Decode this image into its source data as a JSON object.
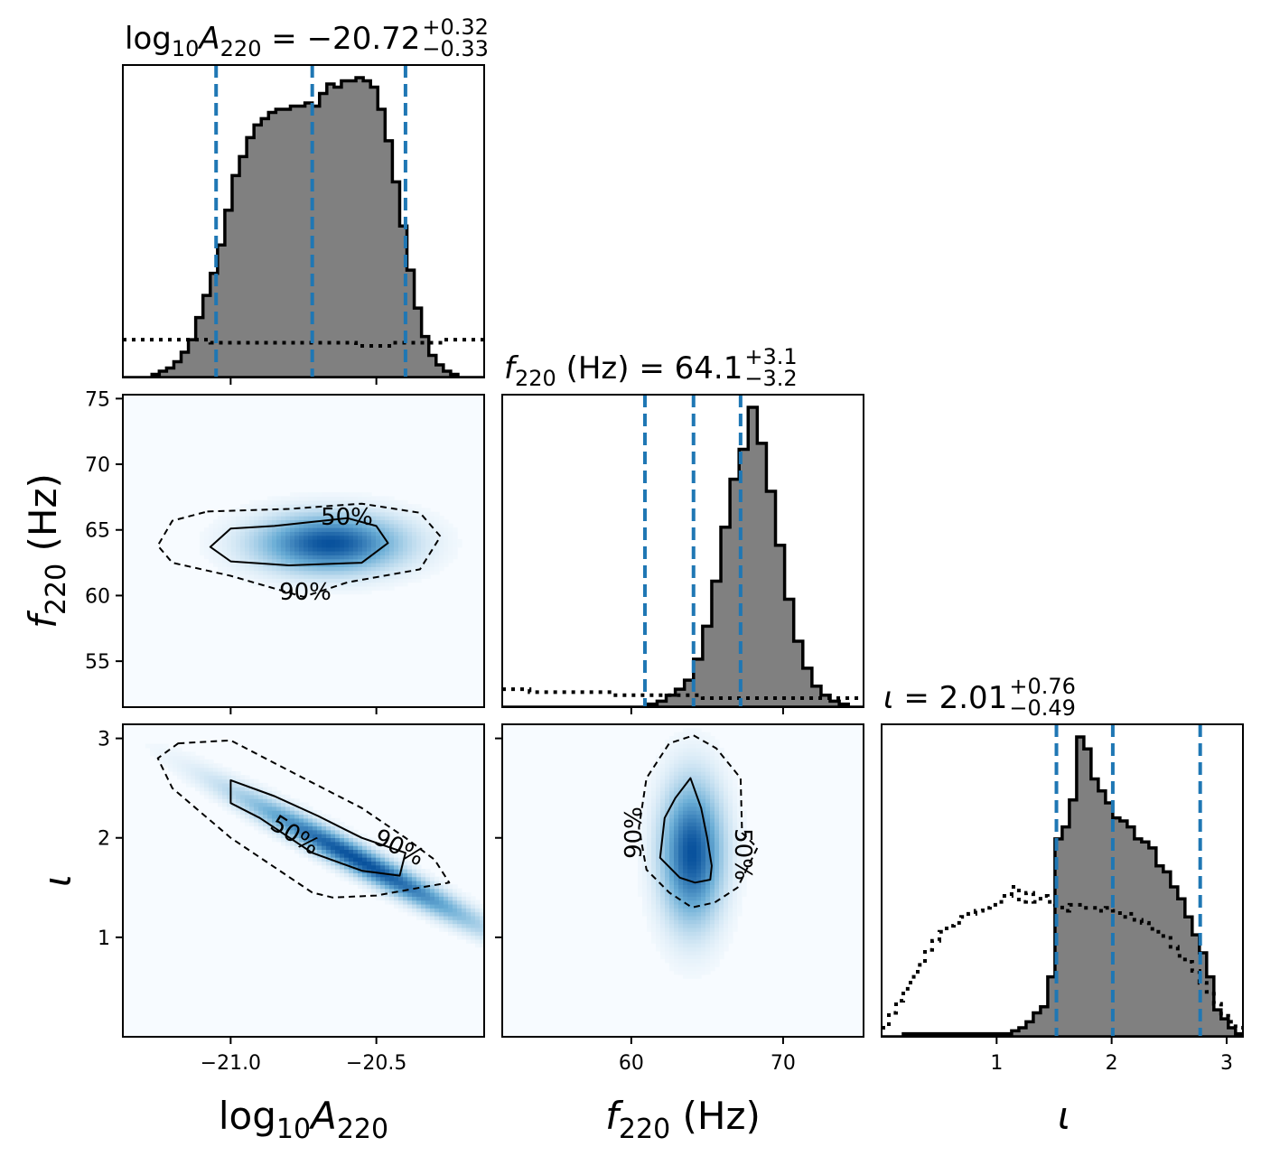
{
  "chart_data": {
    "type": "corner",
    "colors": {
      "hist_fill": "#808080",
      "hist_edge": "#000000",
      "quantile_line": "#1f77b4",
      "prior_line": "#000000",
      "density_low": "#f7fbff",
      "density_high": "#08519c"
    },
    "params": [
      {
        "key": "logA",
        "label_base": "log",
        "label_base_sub": "10",
        "label_sym": "A",
        "label_sym_sub": "220",
        "label_unit": "",
        "range": [
          -21.37,
          -20.13
        ],
        "median": -20.72,
        "plus": "+0.32",
        "minus": "−0.33",
        "value_text": "−20.72",
        "quantiles": [
          -21.05,
          -20.72,
          -20.4
        ],
        "ticks": [
          -21.0,
          -20.5
        ],
        "tick_labels": [
          "−21.0",
          "−20.5"
        ],
        "hist": {
          "edges_start": -21.37,
          "bin_width": 0.025,
          "counts": [
            0,
            0,
            0,
            0,
            1,
            2,
            3,
            5,
            8,
            12,
            19,
            26,
            33,
            42,
            53,
            64,
            70,
            76,
            80,
            82,
            84,
            85,
            85,
            86,
            86,
            87,
            86,
            90,
            93,
            92,
            94,
            94,
            95,
            94,
            92,
            85,
            75,
            62,
            48,
            34,
            22,
            13,
            7,
            4,
            2,
            1,
            0,
            0,
            0,
            0
          ],
          "prior": [
            12,
            12,
            12,
            12,
            12,
            12,
            12,
            12,
            12,
            12,
            12,
            12,
            11,
            11,
            11,
            11,
            11,
            11,
            11,
            11,
            11,
            11,
            11,
            11,
            11,
            11,
            11,
            11,
            11,
            11,
            11,
            11,
            10,
            10,
            10,
            10,
            10,
            11,
            11,
            11,
            11,
            11,
            11,
            11,
            12,
            12,
            12,
            12,
            12,
            12
          ]
        }
      },
      {
        "key": "f220",
        "label_base": "",
        "label_base_sub": "",
        "label_sym": "f",
        "label_sym_sub": "220",
        "label_unit": " (Hz)",
        "range": [
          51.5,
          75.3
        ],
        "median": 64.1,
        "plus": "+3.1",
        "minus": "−3.2",
        "value_text": "64.1",
        "quantiles": [
          60.9,
          64.1,
          67.2
        ],
        "ticks": [
          60,
          70
        ],
        "tick_labels": [
          "60",
          "70"
        ],
        "ticks_y": [
          55,
          60,
          65,
          70,
          75
        ],
        "ticks_y_labels": [
          "55",
          "60",
          "65",
          "70",
          "75"
        ],
        "hist": {
          "edges_start": 51.5,
          "bin_width": 0.6,
          "counts": [
            0,
            0,
            0,
            0,
            0,
            0,
            0,
            0,
            0,
            0,
            0,
            0,
            0,
            0,
            0,
            0,
            1,
            2,
            4,
            6,
            9,
            16,
            27,
            42,
            60,
            76,
            86,
            100,
            88,
            72,
            54,
            36,
            22,
            13,
            7,
            4,
            2,
            1,
            0,
            0
          ],
          "prior": [
            6,
            6,
            6,
            5,
            5,
            5,
            5,
            5,
            5,
            5,
            5,
            5,
            4,
            4,
            4,
            4,
            4,
            4,
            4,
            4,
            4,
            4,
            3,
            3,
            3,
            3,
            3,
            3,
            3,
            3,
            3,
            3,
            3,
            3,
            3,
            3,
            3,
            3,
            3,
            3
          ]
        }
      },
      {
        "key": "iota",
        "label_base": "",
        "label_base_sub": "",
        "label_sym": "ι",
        "label_sym_sub": "",
        "label_unit": "",
        "range": [
          0.0,
          3.1416
        ],
        "median": 2.01,
        "plus": "+0.76",
        "minus": "−0.49",
        "value_text": "2.01",
        "quantiles": [
          1.52,
          2.01,
          2.77
        ],
        "ticks": [
          1,
          2,
          3
        ],
        "tick_labels": [
          "1",
          "2",
          "3"
        ],
        "ticks_y": [
          1,
          2,
          3
        ],
        "ticks_y_labels": [
          "1",
          "2",
          "3"
        ],
        "hist": {
          "edges_start": 0.0,
          "bin_width": 0.0628,
          "counts": [
            0,
            0,
            0,
            1,
            1,
            1,
            1,
            1,
            1,
            1,
            1,
            1,
            1,
            1,
            1,
            1,
            1,
            1,
            2,
            3,
            5,
            8,
            10,
            20,
            66,
            70,
            79,
            100,
            96,
            86,
            82,
            78,
            73,
            72,
            70,
            66,
            65,
            63,
            57,
            55,
            50,
            46,
            40,
            34,
            28,
            20,
            9,
            6,
            3,
            1
          ],
          "prior": [
            3,
            8,
            12,
            16,
            20,
            24,
            29,
            32,
            35,
            37,
            38,
            40,
            41,
            42,
            43,
            44,
            45,
            47,
            50,
            45,
            48,
            45,
            47,
            45,
            44,
            42,
            44,
            44,
            43,
            43,
            42,
            43,
            42,
            40,
            41,
            39,
            38,
            36,
            35,
            33,
            30,
            27,
            25,
            22,
            18,
            15,
            11,
            7,
            5,
            3
          ]
        }
      }
    ],
    "contour_labels": {
      "inner": "50%",
      "outer": "90%"
    },
    "density": [
      {
        "x": "logA",
        "y": "f220",
        "center": [
          -20.66,
          64.0
        ],
        "sigma": [
          0.16,
          1.4
        ],
        "corr": 0.0,
        "c50": [
          [
            -21.0,
            65.1
          ],
          [
            -20.85,
            65.3
          ],
          [
            -20.6,
            65.9
          ],
          [
            -20.5,
            65.3
          ],
          [
            -20.46,
            64.0
          ],
          [
            -20.55,
            62.5
          ],
          [
            -20.8,
            62.3
          ],
          [
            -21.0,
            62.6
          ],
          [
            -21.07,
            63.7
          ]
        ],
        "c90": [
          [
            -21.08,
            66.4
          ],
          [
            -20.8,
            66.6
          ],
          [
            -20.55,
            67.0
          ],
          [
            -20.35,
            66.3
          ],
          [
            -20.28,
            64.5
          ],
          [
            -20.35,
            62.0
          ],
          [
            -20.6,
            61.0
          ],
          [
            -20.75,
            59.9
          ],
          [
            -21.0,
            61.5
          ],
          [
            -21.2,
            62.5
          ],
          [
            -21.25,
            63.8
          ],
          [
            -21.2,
            65.7
          ]
        ]
      },
      {
        "x": "logA",
        "y": "iota",
        "center": [
          -20.56,
          1.78
        ],
        "sigma": [
          0.26,
          0.42
        ],
        "corr": -0.97,
        "c50": [
          [
            -21.0,
            2.58
          ],
          [
            -20.85,
            2.42
          ],
          [
            -20.7,
            2.22
          ],
          [
            -20.55,
            2.0
          ],
          [
            -20.4,
            1.85
          ],
          [
            -20.42,
            1.62
          ],
          [
            -20.55,
            1.67
          ],
          [
            -20.72,
            1.85
          ],
          [
            -20.9,
            2.2
          ],
          [
            -21.0,
            2.35
          ]
        ],
        "c90": [
          [
            -21.18,
            2.95
          ],
          [
            -21.0,
            2.98
          ],
          [
            -20.75,
            2.6
          ],
          [
            -20.55,
            2.3
          ],
          [
            -20.4,
            2.0
          ],
          [
            -20.3,
            1.78
          ],
          [
            -20.25,
            1.55
          ],
          [
            -20.35,
            1.5
          ],
          [
            -20.5,
            1.42
          ],
          [
            -20.65,
            1.4
          ],
          [
            -20.72,
            1.45
          ],
          [
            -21.0,
            2.0
          ],
          [
            -21.2,
            2.5
          ],
          [
            -21.25,
            2.8
          ]
        ]
      },
      {
        "x": "f220",
        "y": "iota",
        "center": [
          64.0,
          1.85
        ],
        "sigma": [
          1.3,
          0.45
        ],
        "corr": 0.0,
        "c50": [
          [
            63.9,
            2.6
          ],
          [
            64.6,
            2.3
          ],
          [
            65.0,
            2.0
          ],
          [
            65.3,
            1.72
          ],
          [
            65.2,
            1.58
          ],
          [
            64.2,
            1.55
          ],
          [
            63.2,
            1.6
          ],
          [
            61.9,
            1.8
          ],
          [
            62.2,
            2.2
          ],
          [
            62.9,
            2.4
          ]
        ],
        "c90": [
          [
            64.1,
            3.03
          ],
          [
            65.6,
            2.9
          ],
          [
            67.2,
            2.6
          ],
          [
            67.3,
            2.05
          ],
          [
            68.3,
            1.9
          ],
          [
            67.0,
            1.5
          ],
          [
            65.5,
            1.35
          ],
          [
            64.0,
            1.3
          ],
          [
            62.5,
            1.45
          ],
          [
            61.0,
            1.68
          ],
          [
            60.5,
            2.1
          ],
          [
            61.0,
            2.6
          ],
          [
            62.5,
            2.95
          ]
        ]
      }
    ]
  }
}
